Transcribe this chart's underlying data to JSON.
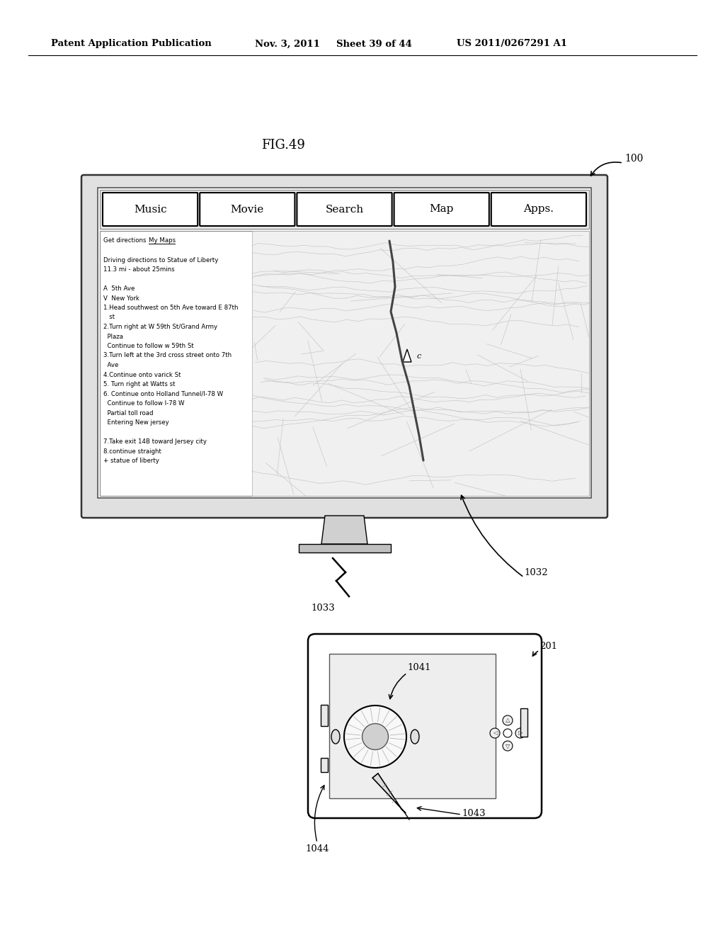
{
  "bg_color": "#ffffff",
  "header_text": "Patent Application Publication",
  "header_date": "Nov. 3, 2011",
  "header_sheet": "Sheet 39 of 44",
  "header_patent": "US 2011/0267291 A1",
  "fig_label": "FIG.49",
  "label_100": "100",
  "label_201": "201",
  "label_1032": "1032",
  "label_1033": "1033",
  "label_1041": "1041",
  "label_1043": "1043",
  "label_1044": "1044",
  "menu_items": [
    "Music",
    "Movie",
    "Search",
    "Map",
    "Apps."
  ],
  "directions_lines": [
    "Get directions  My Maps",
    "",
    "Driving directions to Statue of Liberty",
    "11.3 mi - about 25mins",
    "",
    "A  5th Ave",
    "V  New York",
    "1.Head southwest on 5th Ave toward E 87th",
    "   st",
    "2.Turn right at W 59th St/Grand Army",
    "  Plaza",
    "  Continue to follow w 59th St",
    "3.Turn left at the 3rd cross street onto 7th",
    "  Ave",
    "4.Continue onto varick St",
    "5. Turn right at Watts st",
    "6. Continue onto Holland Tunnel/I-78 W",
    "  Continue to follow I-78 W",
    "  Partial toll road",
    "  Entering New jersey",
    "",
    "7.Take exit 14B toward Jersey city",
    "8.continue straight",
    "+ statue of liberty"
  ]
}
